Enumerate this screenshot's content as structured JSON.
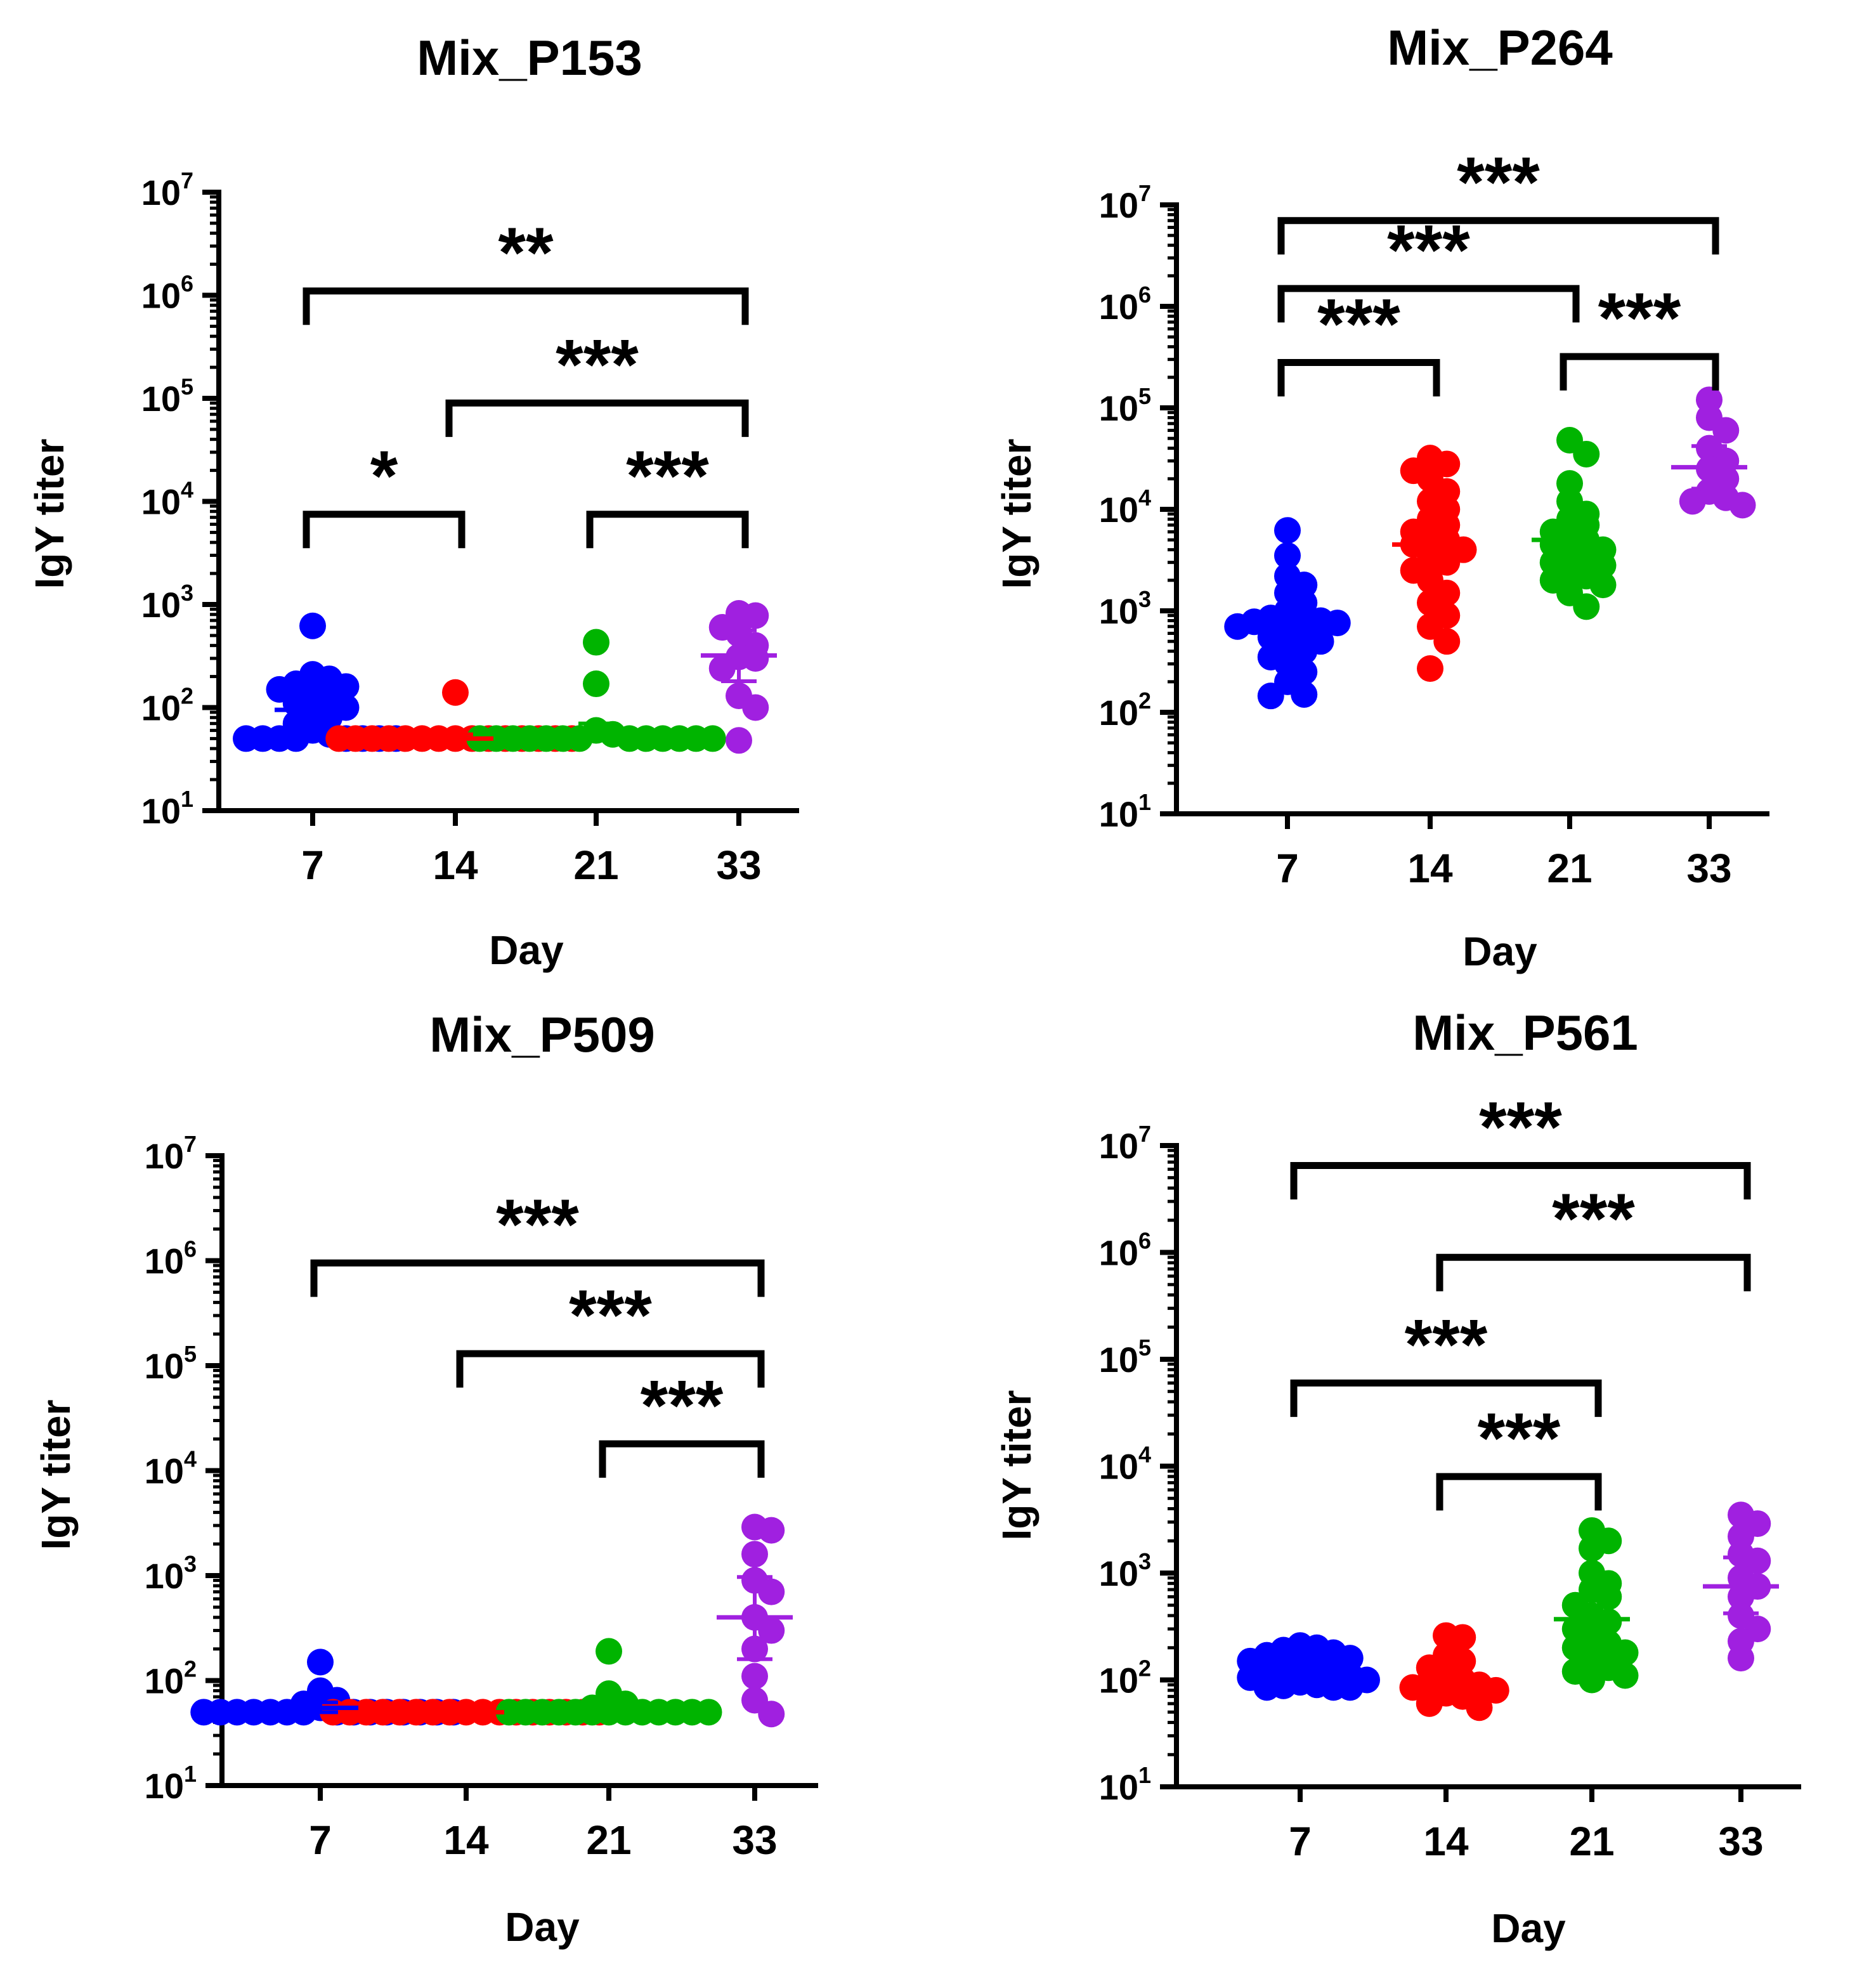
{
  "chart_data": [
    {
      "type": "scatter",
      "title": "Mix_P153",
      "xlabel": "Day",
      "ylabel": "IgY titer",
      "yscale": "log10",
      "ylim": [
        10,
        10000000
      ],
      "categories": [
        "7",
        "14",
        "21",
        "33"
      ],
      "colors": [
        "#0000ff",
        "#ff0000",
        "#00b400",
        "#a020e0"
      ],
      "series": [
        {
          "name": "7",
          "values": [
            620,
            210,
            190,
            170,
            160,
            150,
            140,
            120,
            110,
            100,
            90,
            80,
            70,
            60,
            55,
            50,
            50,
            50,
            50,
            50,
            50,
            50,
            50
          ],
          "mean": 95,
          "ci": [
            80,
            120
          ]
        },
        {
          "name": "14",
          "values": [
            140,
            50,
            50,
            50,
            50,
            50,
            50,
            50,
            50,
            50,
            50,
            50,
            50,
            50,
            50,
            50
          ],
          "mean": 50,
          "ci": [
            50,
            55
          ]
        },
        {
          "name": "21",
          "values": [
            430,
            170,
            60,
            55,
            50,
            50,
            50,
            50,
            50,
            50,
            50,
            50,
            50,
            50,
            50,
            50,
            50
          ],
          "mean": 58,
          "ci": [
            50,
            70
          ]
        },
        {
          "name": "33",
          "values": [
            820,
            780,
            600,
            520,
            400,
            310,
            300,
            240,
            130,
            100,
            48
          ],
          "mean": 320,
          "ci": [
            180,
            560
          ]
        }
      ],
      "brackets": [
        {
          "from": "7",
          "to": "33",
          "label": "**",
          "level": 1100000
        },
        {
          "from": "14",
          "to": "33",
          "label": "***",
          "level": 90000
        },
        {
          "from": "7",
          "to": "14",
          "label": "*",
          "level": 7500
        },
        {
          "from": "21",
          "to": "33",
          "label": "***",
          "level": 7500
        }
      ]
    },
    {
      "type": "scatter",
      "title": "Mix_P264",
      "xlabel": "Day",
      "ylabel": "IgY titer",
      "yscale": "log10",
      "ylim": [
        10,
        10000000
      ],
      "categories": [
        "7",
        "14",
        "21",
        "33"
      ],
      "colors": [
        "#0000ff",
        "#ff0000",
        "#00b400",
        "#a020e0"
      ],
      "series": [
        {
          "name": "7",
          "values": [
            6200,
            3500,
            2200,
            1800,
            1500,
            1200,
            1000,
            900,
            850,
            800,
            780,
            760,
            700,
            650,
            600,
            550,
            500,
            450,
            400,
            350,
            300,
            250,
            200,
            150,
            145
          ],
          "mean": 780,
          "ci": [
            600,
            1000
          ]
        },
        {
          "name": "14",
          "values": [
            32000,
            28000,
            24000,
            20000,
            15000,
            12000,
            10000,
            8000,
            7000,
            6000,
            5500,
            5000,
            4500,
            4000,
            3500,
            3000,
            2500,
            2000,
            1500,
            1200,
            900,
            700,
            500,
            270
          ],
          "mean": 4500,
          "ci": [
            2800,
            7000
          ]
        },
        {
          "name": "21",
          "values": [
            48000,
            35000,
            18000,
            12000,
            9000,
            8000,
            7000,
            6000,
            5500,
            5000,
            4500,
            4000,
            3800,
            3500,
            3000,
            2800,
            2500,
            2200,
            2000,
            1800,
            1500,
            1100
          ],
          "mean": 5000,
          "ci": [
            3500,
            7000
          ]
        },
        {
          "name": "33",
          "values": [
            120000,
            80000,
            60000,
            40000,
            30000,
            25000,
            20000,
            15000,
            13000,
            12000,
            11000
          ],
          "mean": 26000,
          "ci": [
            16000,
            42000
          ]
        }
      ],
      "brackets": [
        {
          "from": "7",
          "to": "33",
          "label": "***",
          "level": 7000000
        },
        {
          "from": "7",
          "to": "21",
          "label": "***",
          "level": 1500000
        },
        {
          "from": "7",
          "to": "14",
          "label": "***",
          "level": 280000
        },
        {
          "from": "21",
          "to": "33",
          "label": "***",
          "level": 320000
        }
      ]
    },
    {
      "type": "scatter",
      "title": "Mix_P509",
      "xlabel": "Day",
      "ylabel": "IgY titer",
      "yscale": "log10",
      "ylim": [
        10,
        10000000
      ],
      "categories": [
        "7",
        "14",
        "21",
        "33"
      ],
      "colors": [
        "#0000ff",
        "#ff0000",
        "#00b400",
        "#a020e0"
      ],
      "series": [
        {
          "name": "7",
          "values": [
            150,
            80,
            65,
            60,
            55,
            50,
            50,
            50,
            50,
            50,
            50,
            50,
            50,
            50,
            50,
            50,
            50,
            50,
            50,
            50
          ],
          "mean": 55,
          "ci": [
            50,
            62
          ]
        },
        {
          "name": "14",
          "values": [
            50,
            50,
            50,
            50,
            50,
            50,
            50,
            50,
            50,
            50,
            50,
            50,
            50,
            50,
            50,
            50,
            50
          ],
          "mean": 50,
          "ci": [
            50,
            50
          ]
        },
        {
          "name": "21",
          "values": [
            190,
            75,
            60,
            55,
            50,
            50,
            50,
            50,
            50,
            50,
            50,
            50,
            50,
            50,
            50,
            50,
            50
          ],
          "mean": 52,
          "ci": [
            50,
            58
          ]
        },
        {
          "name": "33",
          "values": [
            2900,
            2700,
            1600,
            900,
            700,
            400,
            300,
            200,
            110,
            65,
            48
          ],
          "mean": 400,
          "ci": [
            160,
            970
          ]
        }
      ],
      "brackets": [
        {
          "from": "7",
          "to": "33",
          "label": "***",
          "level": 950000
        },
        {
          "from": "14",
          "to": "33",
          "label": "***",
          "level": 130000
        },
        {
          "from": "21",
          "to": "33",
          "label": "***",
          "level": 18000
        }
      ]
    },
    {
      "type": "scatter",
      "title": "Mix_P561",
      "xlabel": "Day",
      "ylabel": "IgY titer",
      "yscale": "log10",
      "ylim": [
        10,
        10000000
      ],
      "categories": [
        "7",
        "14",
        "21",
        "33"
      ],
      "colors": [
        "#0000ff",
        "#ff0000",
        "#00b400",
        "#a020e0"
      ],
      "series": [
        {
          "name": "7",
          "values": [
            210,
            200,
            190,
            180,
            170,
            160,
            150,
            140,
            130,
            125,
            120,
            115,
            110,
            105,
            100,
            95,
            90,
            88,
            85,
            85,
            85
          ],
          "mean": 125,
          "ci": [
            110,
            140
          ]
        },
        {
          "name": "14",
          "values": [
            260,
            250,
            170,
            150,
            130,
            110,
            100,
            95,
            90,
            85,
            80,
            75,
            70,
            60,
            55
          ],
          "mean": 95,
          "ci": [
            80,
            115
          ]
        },
        {
          "name": "21",
          "values": [
            2500,
            2000,
            1700,
            1000,
            800,
            700,
            600,
            500,
            400,
            350,
            300,
            250,
            220,
            200,
            180,
            150,
            130,
            120,
            110,
            100
          ],
          "mean": 370,
          "ci": [
            250,
            550
          ]
        },
        {
          "name": "33",
          "values": [
            3500,
            2900,
            2200,
            1500,
            1300,
            900,
            750,
            600,
            400,
            300,
            230,
            160
          ],
          "mean": 750,
          "ci": [
            420,
            1400
          ]
        }
      ],
      "brackets": [
        {
          "from": "7",
          "to": "33",
          "label": "***",
          "level": 6500000
        },
        {
          "from": "14",
          "to": "33",
          "label": "***",
          "level": 900000
        },
        {
          "from": "7",
          "to": "21",
          "label": "***",
          "level": 60000
        },
        {
          "from": "14",
          "to": "21",
          "label": "***",
          "level": 8000
        }
      ]
    }
  ]
}
